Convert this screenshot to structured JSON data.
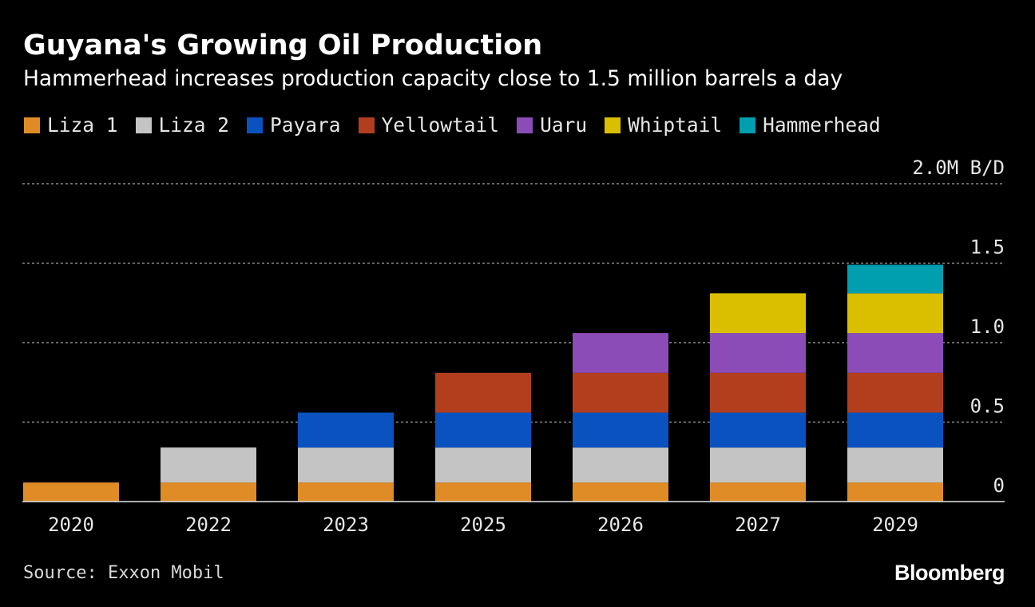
{
  "chart_data": {
    "type": "bar",
    "stacked": true,
    "title": "Guyana's Growing Oil Production",
    "subtitle": "Hammerhead increases production capacity close to 1.5 million barrels a day",
    "categories": [
      "2020",
      "2022",
      "2023",
      "2025",
      "2026",
      "2027",
      "2029"
    ],
    "series": [
      {
        "name": "Liza 1",
        "color": "#e08c26",
        "values": [
          0.12,
          0.12,
          0.12,
          0.12,
          0.12,
          0.12,
          0.12
        ]
      },
      {
        "name": "Liza 2",
        "color": "#c4c4c4",
        "values": [
          0,
          0.22,
          0.22,
          0.22,
          0.22,
          0.22,
          0.22
        ]
      },
      {
        "name": "Payara",
        "color": "#0a52c0",
        "values": [
          0,
          0,
          0.22,
          0.22,
          0.22,
          0.22,
          0.22
        ]
      },
      {
        "name": "Yellowtail",
        "color": "#b23e1e",
        "values": [
          0,
          0,
          0,
          0.25,
          0.25,
          0.25,
          0.25
        ]
      },
      {
        "name": "Uaru",
        "color": "#8c4cb8",
        "values": [
          0,
          0,
          0,
          0,
          0.25,
          0.25,
          0.25
        ]
      },
      {
        "name": "Whiptail",
        "color": "#d9bf00",
        "values": [
          0,
          0,
          0,
          0,
          0,
          0.25,
          0.25
        ]
      },
      {
        "name": "Hammerhead",
        "color": "#009fb0",
        "values": [
          0,
          0,
          0,
          0,
          0,
          0,
          0.18
        ]
      }
    ],
    "ylim": [
      0,
      2.0
    ],
    "yticks": [
      {
        "value": 0,
        "label": "0"
      },
      {
        "value": 0.5,
        "label": "0.5"
      },
      {
        "value": 1.0,
        "label": "1.0"
      },
      {
        "value": 1.5,
        "label": "1.5"
      },
      {
        "value": 2.0,
        "label": "2.0M B/D"
      }
    ],
    "ylabel": "M B/D",
    "xlabel": "",
    "grid": true,
    "legend": "top-left"
  },
  "source": "Source: Exxon Mobil",
  "brand": "Bloomberg",
  "colors": {
    "background": "#000000",
    "text": "#ffffff",
    "grid": "#8c8c8c",
    "axis": "#e6e6e6"
  }
}
